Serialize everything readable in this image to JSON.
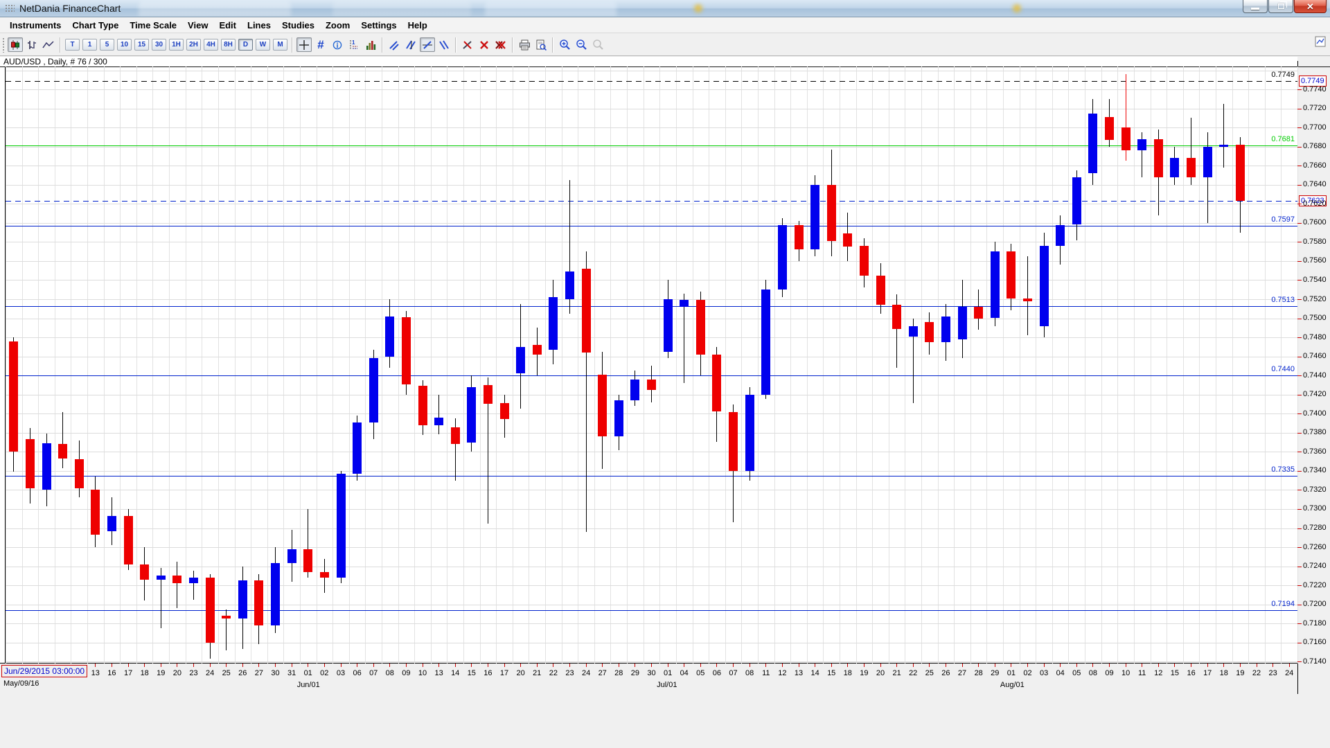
{
  "window": {
    "title": "NetDania FinanceChart",
    "minimize_label": "minimize",
    "restore_label": "restore",
    "close_label": "close"
  },
  "menu": {
    "items": [
      "Instruments",
      "Chart Type",
      "Time Scale",
      "View",
      "Edit",
      "Lines",
      "Studies",
      "Zoom",
      "Settings",
      "Help"
    ]
  },
  "toolbar": {
    "chart_types": [
      {
        "name": "candlestick-chart",
        "selected": true
      },
      {
        "name": "bar-chart",
        "selected": false
      },
      {
        "name": "line-chart",
        "selected": false
      }
    ],
    "timeframes": [
      {
        "label": "T",
        "selected": false
      },
      {
        "label": "1",
        "selected": false
      },
      {
        "label": "5",
        "selected": false
      },
      {
        "label": "10",
        "selected": false
      },
      {
        "label": "15",
        "selected": false
      },
      {
        "label": "30",
        "selected": false
      },
      {
        "label": "1H",
        "selected": false
      },
      {
        "label": "2H",
        "selected": false
      },
      {
        "label": "4H",
        "selected": false
      },
      {
        "label": "8H",
        "selected": false
      },
      {
        "label": "D",
        "selected": true
      },
      {
        "label": "W",
        "selected": false
      },
      {
        "label": "M",
        "selected": false
      }
    ],
    "tools": [
      "crosshair",
      "grid",
      "info",
      "cursor-data",
      "volume",
      "trend-line",
      "trend-channel",
      "trend-box",
      "trend-multi",
      "erase-line",
      "delete-selected",
      "delete-all",
      "print",
      "print-preview",
      "zoom-in",
      "zoom-out",
      "zoom-reset"
    ]
  },
  "chart_label": "AUD/USD , Daily, # 76 / 300",
  "chart_data": {
    "type": "candlestick",
    "instrument": "AUD/USD",
    "timeframe": "Daily",
    "bar_counter": "# 76 / 300",
    "current_price": "0.7623",
    "colors": {
      "up": "#0000ee",
      "down": "#ee0000",
      "wick": "#000000",
      "grid": "#dcdcdc"
    },
    "y_axis": {
      "min": 0.7138,
      "max": 0.7764,
      "tick_step": 0.002,
      "tick_labels": [
        "0.7740",
        "0.7720",
        "0.7700",
        "0.7680",
        "0.7660",
        "0.7640",
        "0.7620",
        "0.7600",
        "0.7580",
        "0.7560",
        "0.7540",
        "0.7520",
        "0.7500",
        "0.7480",
        "0.7460",
        "0.7440",
        "0.7420",
        "0.7400",
        "0.7380",
        "0.7360",
        "0.7340",
        "0.7320",
        "0.7300",
        "0.7280",
        "0.7260",
        "0.7240",
        "0.7220",
        "0.7200",
        "0.7180",
        "0.7160",
        "0.7140"
      ]
    },
    "x_axis": {
      "timestamp_box": "Jun/29/2015 03:00:00",
      "period_start": "May/09/16",
      "first_label_slot": 5,
      "total_slots": 79,
      "tick_labels": [
        "13",
        "16",
        "17",
        "18",
        "19",
        "20",
        "23",
        "24",
        "25",
        "26",
        "27",
        "30",
        "31",
        "01",
        "02",
        "03",
        "06",
        "07",
        "08",
        "09",
        "10",
        "13",
        "14",
        "15",
        "16",
        "17",
        "20",
        "21",
        "22",
        "23",
        "24",
        "27",
        "28",
        "29",
        "30",
        "01",
        "04",
        "05",
        "06",
        "07",
        "08",
        "11",
        "12",
        "13",
        "14",
        "15",
        "18",
        "19",
        "20",
        "21",
        "22",
        "25",
        "26",
        "27",
        "28",
        "29",
        "01",
        "02",
        "03",
        "04",
        "05",
        "08",
        "09",
        "10",
        "11",
        "12",
        "15",
        "16",
        "17",
        "18",
        "19",
        "22",
        "23",
        "24"
      ],
      "month_labels": [
        {
          "text": "Jun/01",
          "slot": 18
        },
        {
          "text": "Jul/01",
          "slot": 40
        },
        {
          "text": "Aug/01",
          "slot": 61
        }
      ]
    },
    "hlines": [
      {
        "price": 0.7749,
        "label": "0.7749",
        "color": "#000000",
        "style": "dashed",
        "axis_box": "0.7749"
      },
      {
        "price": 0.7681,
        "label": "0.7681",
        "color": "#00cc00",
        "style": "solid"
      },
      {
        "price": 0.7623,
        "label": "",
        "color": "#0022cc",
        "style": "dashed",
        "axis_box": "0.7623"
      },
      {
        "price": 0.7597,
        "label": "0.7597",
        "color": "#0022cc",
        "style": "solid"
      },
      {
        "price": 0.7513,
        "label": "0.7513",
        "color": "#0022cc",
        "style": "solid"
      },
      {
        "price": 0.744,
        "label": "0.7440",
        "color": "#0022cc",
        "style": "solid"
      },
      {
        "price": 0.7335,
        "label": "0.7335",
        "color": "#0022cc",
        "style": "solid"
      },
      {
        "price": 0.7194,
        "label": "0.7194",
        "color": "#0022cc",
        "style": "solid"
      }
    ],
    "candles": [
      {
        "d": "May/06",
        "o": 0.7476,
        "h": 0.748,
        "l": 0.7339,
        "c": 0.736
      },
      {
        "d": "May/09",
        "o": 0.7373,
        "h": 0.7385,
        "l": 0.7306,
        "c": 0.7322
      },
      {
        "d": "May/10",
        "o": 0.732,
        "h": 0.7379,
        "l": 0.7303,
        "c": 0.7369
      },
      {
        "d": "May/11",
        "o": 0.7368,
        "h": 0.7402,
        "l": 0.7343,
        "c": 0.7353
      },
      {
        "d": "May/12",
        "o": 0.7352,
        "h": 0.7372,
        "l": 0.7312,
        "c": 0.7322
      },
      {
        "d": "May/13",
        "o": 0.732,
        "h": 0.7334,
        "l": 0.726,
        "c": 0.7273
      },
      {
        "d": "May/16",
        "o": 0.7277,
        "h": 0.7312,
        "l": 0.7262,
        "c": 0.7293
      },
      {
        "d": "May/17",
        "o": 0.7293,
        "h": 0.73,
        "l": 0.7236,
        "c": 0.7242
      },
      {
        "d": "May/18",
        "o": 0.7242,
        "h": 0.726,
        "l": 0.7204,
        "c": 0.7226
      },
      {
        "d": "May/19",
        "o": 0.7226,
        "h": 0.7238,
        "l": 0.7175,
        "c": 0.723
      },
      {
        "d": "May/20",
        "o": 0.723,
        "h": 0.7245,
        "l": 0.7196,
        "c": 0.7222
      },
      {
        "d": "May/23",
        "o": 0.7222,
        "h": 0.7235,
        "l": 0.7205,
        "c": 0.7228
      },
      {
        "d": "May/24",
        "o": 0.7228,
        "h": 0.7232,
        "l": 0.7143,
        "c": 0.716
      },
      {
        "d": "May/25",
        "o": 0.7188,
        "h": 0.7195,
        "l": 0.7152,
        "c": 0.7185
      },
      {
        "d": "May/26",
        "o": 0.7185,
        "h": 0.724,
        "l": 0.7153,
        "c": 0.7225
      },
      {
        "d": "May/27",
        "o": 0.7225,
        "h": 0.7232,
        "l": 0.7158,
        "c": 0.7178
      },
      {
        "d": "May/30",
        "o": 0.7178,
        "h": 0.726,
        "l": 0.717,
        "c": 0.7243
      },
      {
        "d": "May/31",
        "o": 0.7243,
        "h": 0.7278,
        "l": 0.7224,
        "c": 0.7258
      },
      {
        "d": "Jun/01",
        "o": 0.7258,
        "h": 0.73,
        "l": 0.7228,
        "c": 0.7234
      },
      {
        "d": "Jun/02",
        "o": 0.7234,
        "h": 0.7248,
        "l": 0.7212,
        "c": 0.7228
      },
      {
        "d": "Jun/03",
        "o": 0.7228,
        "h": 0.734,
        "l": 0.7222,
        "c": 0.7337
      },
      {
        "d": "Jun/06",
        "o": 0.7337,
        "h": 0.7398,
        "l": 0.733,
        "c": 0.7391
      },
      {
        "d": "Jun/07",
        "o": 0.7391,
        "h": 0.7467,
        "l": 0.7373,
        "c": 0.7458
      },
      {
        "d": "Jun/08",
        "o": 0.746,
        "h": 0.752,
        "l": 0.7448,
        "c": 0.7502
      },
      {
        "d": "Jun/09",
        "o": 0.7501,
        "h": 0.7508,
        "l": 0.742,
        "c": 0.7431
      },
      {
        "d": "Jun/10",
        "o": 0.7429,
        "h": 0.7435,
        "l": 0.7378,
        "c": 0.7388
      },
      {
        "d": "Jun/13",
        "o": 0.7388,
        "h": 0.742,
        "l": 0.7378,
        "c": 0.7396
      },
      {
        "d": "Jun/14",
        "o": 0.7386,
        "h": 0.7395,
        "l": 0.733,
        "c": 0.7368
      },
      {
        "d": "Jun/15",
        "o": 0.737,
        "h": 0.744,
        "l": 0.736,
        "c": 0.7428
      },
      {
        "d": "Jun/16",
        "o": 0.743,
        "h": 0.7438,
        "l": 0.7285,
        "c": 0.741
      },
      {
        "d": "Jun/17",
        "o": 0.7411,
        "h": 0.742,
        "l": 0.7375,
        "c": 0.7394
      },
      {
        "d": "Jun/20",
        "o": 0.7442,
        "h": 0.7515,
        "l": 0.7405,
        "c": 0.747
      },
      {
        "d": "Jun/21",
        "o": 0.7472,
        "h": 0.749,
        "l": 0.744,
        "c": 0.7462
      },
      {
        "d": "Jun/22",
        "o": 0.7467,
        "h": 0.754,
        "l": 0.7452,
        "c": 0.7522
      },
      {
        "d": "Jun/23",
        "o": 0.752,
        "h": 0.7645,
        "l": 0.7505,
        "c": 0.7549
      },
      {
        "d": "Jun/24",
        "o": 0.7552,
        "h": 0.757,
        "l": 0.7276,
        "c": 0.7464
      },
      {
        "d": "Jun/27",
        "o": 0.7441,
        "h": 0.7465,
        "l": 0.7342,
        "c": 0.7376
      },
      {
        "d": "Jun/28",
        "o": 0.7376,
        "h": 0.742,
        "l": 0.7362,
        "c": 0.7414
      },
      {
        "d": "Jun/29",
        "o": 0.7414,
        "h": 0.7445,
        "l": 0.7408,
        "c": 0.7436
      },
      {
        "d": "Jun/30",
        "o": 0.7436,
        "h": 0.745,
        "l": 0.7412,
        "c": 0.7425
      },
      {
        "d": "Jul/01",
        "o": 0.7465,
        "h": 0.754,
        "l": 0.7458,
        "c": 0.752
      },
      {
        "d": "Jul/04",
        "o": 0.7512,
        "h": 0.7526,
        "l": 0.7432,
        "c": 0.7519
      },
      {
        "d": "Jul/05",
        "o": 0.7519,
        "h": 0.7528,
        "l": 0.744,
        "c": 0.7462
      },
      {
        "d": "Jul/06",
        "o": 0.7462,
        "h": 0.747,
        "l": 0.737,
        "c": 0.7402
      },
      {
        "d": "Jul/07",
        "o": 0.7402,
        "h": 0.741,
        "l": 0.7286,
        "c": 0.734
      },
      {
        "d": "Jul/08",
        "o": 0.734,
        "h": 0.7428,
        "l": 0.733,
        "c": 0.742
      },
      {
        "d": "Jul/11",
        "o": 0.742,
        "h": 0.754,
        "l": 0.7415,
        "c": 0.753
      },
      {
        "d": "Jul/12",
        "o": 0.753,
        "h": 0.7605,
        "l": 0.7522,
        "c": 0.7598
      },
      {
        "d": "Jul/13",
        "o": 0.7598,
        "h": 0.7602,
        "l": 0.756,
        "c": 0.7572
      },
      {
        "d": "Jul/14",
        "o": 0.7572,
        "h": 0.765,
        "l": 0.7565,
        "c": 0.764
      },
      {
        "d": "Jul/15",
        "o": 0.764,
        "h": 0.7677,
        "l": 0.7565,
        "c": 0.7581
      },
      {
        "d": "Jul/18",
        "o": 0.7589,
        "h": 0.7611,
        "l": 0.756,
        "c": 0.7575
      },
      {
        "d": "Jul/19",
        "o": 0.7576,
        "h": 0.7584,
        "l": 0.7532,
        "c": 0.7545
      },
      {
        "d": "Jul/20",
        "o": 0.7545,
        "h": 0.7558,
        "l": 0.7505,
        "c": 0.7514
      },
      {
        "d": "Jul/21",
        "o": 0.7514,
        "h": 0.7525,
        "l": 0.7448,
        "c": 0.7489
      },
      {
        "d": "Jul/22",
        "o": 0.7481,
        "h": 0.75,
        "l": 0.7411,
        "c": 0.7492
      },
      {
        "d": "Jul/25",
        "o": 0.7496,
        "h": 0.7506,
        "l": 0.7462,
        "c": 0.7475
      },
      {
        "d": "Jul/26",
        "o": 0.7475,
        "h": 0.7515,
        "l": 0.7455,
        "c": 0.7502
      },
      {
        "d": "Jul/27",
        "o": 0.7478,
        "h": 0.754,
        "l": 0.7458,
        "c": 0.7512
      },
      {
        "d": "Jul/28",
        "o": 0.7512,
        "h": 0.753,
        "l": 0.7488,
        "c": 0.75
      },
      {
        "d": "Jul/29",
        "o": 0.75,
        "h": 0.758,
        "l": 0.7492,
        "c": 0.757
      },
      {
        "d": "Aug/01",
        "o": 0.757,
        "h": 0.7578,
        "l": 0.7508,
        "c": 0.7521
      },
      {
        "d": "Aug/02",
        "o": 0.7521,
        "h": 0.7565,
        "l": 0.7482,
        "c": 0.7518
      },
      {
        "d": "Aug/03",
        "o": 0.7492,
        "h": 0.759,
        "l": 0.748,
        "c": 0.7576
      },
      {
        "d": "Aug/04",
        "o": 0.7576,
        "h": 0.7608,
        "l": 0.7556,
        "c": 0.7598
      },
      {
        "d": "Aug/05",
        "o": 0.7598,
        "h": 0.7655,
        "l": 0.7582,
        "c": 0.7648
      },
      {
        "d": "Aug/08",
        "o": 0.7652,
        "h": 0.773,
        "l": 0.764,
        "c": 0.7715
      },
      {
        "d": "Aug/09",
        "o": 0.7711,
        "h": 0.773,
        "l": 0.768,
        "c": 0.7687
      },
      {
        "d": "Aug/10",
        "o": 0.77,
        "h": 0.7756,
        "l": 0.7665,
        "c": 0.7676,
        "wick": "#ee0000"
      },
      {
        "d": "Aug/11",
        "o": 0.7676,
        "h": 0.7695,
        "l": 0.7648,
        "c": 0.7688
      },
      {
        "d": "Aug/12",
        "o": 0.7688,
        "h": 0.7698,
        "l": 0.7608,
        "c": 0.7648
      },
      {
        "d": "Aug/15",
        "o": 0.7648,
        "h": 0.768,
        "l": 0.764,
        "c": 0.7668
      },
      {
        "d": "Aug/16",
        "o": 0.7668,
        "h": 0.771,
        "l": 0.764,
        "c": 0.7648
      },
      {
        "d": "Aug/17",
        "o": 0.7648,
        "h": 0.7695,
        "l": 0.76,
        "c": 0.768
      },
      {
        "d": "Aug/18",
        "o": 0.768,
        "h": 0.7725,
        "l": 0.7658,
        "c": 0.7682
      },
      {
        "d": "Aug/19",
        "o": 0.7682,
        "h": 0.769,
        "l": 0.759,
        "c": 0.7623
      }
    ]
  }
}
